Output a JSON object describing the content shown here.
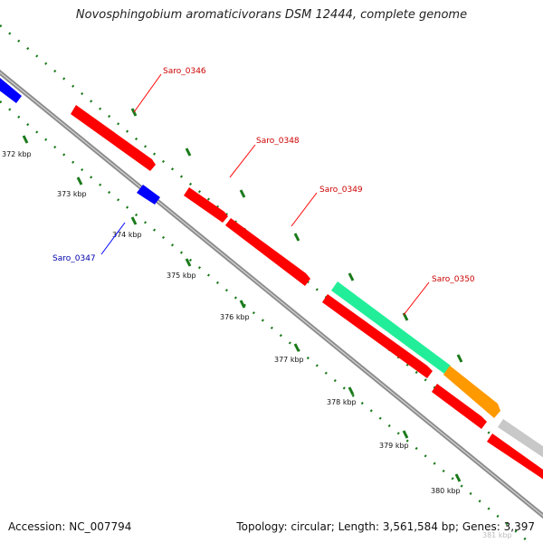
{
  "title": "Novosphingobium aromaticivorans DSM 12444, complete genome",
  "footer": {
    "accession": "Accession: NC_007794",
    "summary": "Topology: circular; Length: 3,561,584 bp; Genes: 3,397"
  },
  "ticks": [
    {
      "label": "372 kbp"
    },
    {
      "label": "373 kbp"
    },
    {
      "label": "374 kbp"
    },
    {
      "label": "375 kbp"
    },
    {
      "label": "376 kbp"
    },
    {
      "label": "377 kbp"
    },
    {
      "label": "378 kbp"
    },
    {
      "label": "379 kbp"
    },
    {
      "label": "380 kbp"
    },
    {
      "label": "381 kbp"
    }
  ],
  "gene_labels": [
    {
      "name": "Saro_0346",
      "color": "#cc0000"
    },
    {
      "name": "Saro_0348",
      "color": "#cc0000"
    },
    {
      "name": "Saro_0349",
      "color": "#cc0000"
    },
    {
      "name": "Saro_0350",
      "color": "#cc0000"
    },
    {
      "name": "Saro_0347",
      "color": "#0000aa"
    }
  ],
  "colors": {
    "forward_cds": "#ff0000",
    "reverse_cds": "#0000ff",
    "rrna": "#22ee99",
    "trna": "#ff9900",
    "other": "#c8c8c8",
    "backbone": "#8c8c8c",
    "tick_mark": "#1a7a1a"
  }
}
